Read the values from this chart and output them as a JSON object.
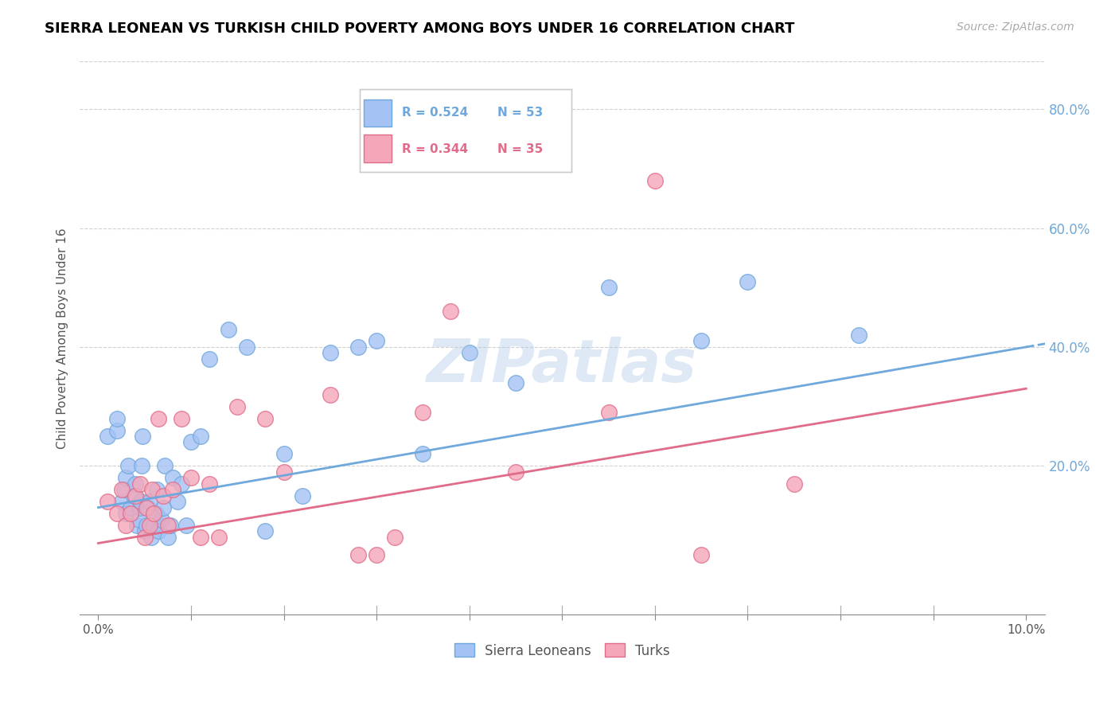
{
  "title": "SIERRA LEONEAN VS TURKISH CHILD POVERTY AMONG BOYS UNDER 16 CORRELATION CHART",
  "source": "Source: ZipAtlas.com",
  "ylabel": "Child Poverty Among Boys Under 16",
  "y_ticks": [
    0.0,
    20.0,
    40.0,
    60.0,
    80.0
  ],
  "y_tick_labels": [
    "",
    "20.0%",
    "40.0%",
    "60.0%",
    "80.0%"
  ],
  "x_range": [
    0.0,
    10.0
  ],
  "y_range": [
    -5.0,
    88.0
  ],
  "legend_R1": "R = 0.524",
  "legend_N1": "N = 53",
  "legend_R2": "R = 0.344",
  "legend_N2": "N = 35",
  "watermark": "ZIPatlas",
  "blue_color": "#6fa8dc",
  "pink_color": "#e06c8a",
  "blue_fill": "#a4c2f4",
  "pink_fill": "#f4a7b9",
  "sierra_x": [
    0.1,
    0.2,
    0.2,
    0.25,
    0.28,
    0.3,
    0.3,
    0.32,
    0.35,
    0.38,
    0.4,
    0.42,
    0.44,
    0.45,
    0.46,
    0.47,
    0.48,
    0.5,
    0.52,
    0.54,
    0.55,
    0.57,
    0.6,
    0.62,
    0.63,
    0.65,
    0.68,
    0.7,
    0.72,
    0.75,
    0.78,
    0.8,
    0.85,
    0.9,
    0.95,
    1.0,
    1.1,
    1.2,
    1.4,
    1.6,
    1.8,
    2.0,
    2.2,
    2.5,
    2.8,
    3.0,
    3.5,
    4.0,
    4.5,
    5.5,
    6.5,
    7.0,
    8.2
  ],
  "sierra_y": [
    25.0,
    26.0,
    28.0,
    14.0,
    16.0,
    12.0,
    18.0,
    20.0,
    13.0,
    15.0,
    17.0,
    10.0,
    11.0,
    13.0,
    14.0,
    20.0,
    25.0,
    9.0,
    10.0,
    13.0,
    14.0,
    8.0,
    10.0,
    12.0,
    16.0,
    9.0,
    11.0,
    13.0,
    20.0,
    8.0,
    10.0,
    18.0,
    14.0,
    17.0,
    10.0,
    24.0,
    25.0,
    38.0,
    43.0,
    40.0,
    9.0,
    22.0,
    15.0,
    39.0,
    40.0,
    41.0,
    22.0,
    39.0,
    34.0,
    50.0,
    41.0,
    51.0,
    42.0
  ],
  "turkish_x": [
    0.1,
    0.2,
    0.25,
    0.3,
    0.35,
    0.4,
    0.45,
    0.5,
    0.52,
    0.55,
    0.58,
    0.6,
    0.65,
    0.7,
    0.75,
    0.8,
    0.9,
    1.0,
    1.1,
    1.2,
    1.3,
    1.5,
    1.8,
    2.0,
    2.5,
    2.8,
    3.0,
    3.2,
    3.5,
    3.8,
    4.5,
    5.5,
    6.0,
    6.5,
    7.5
  ],
  "turkish_y": [
    14.0,
    12.0,
    16.0,
    10.0,
    12.0,
    15.0,
    17.0,
    8.0,
    13.0,
    10.0,
    16.0,
    12.0,
    28.0,
    15.0,
    10.0,
    16.0,
    28.0,
    18.0,
    8.0,
    17.0,
    8.0,
    30.0,
    28.0,
    19.0,
    32.0,
    5.0,
    5.0,
    8.0,
    29.0,
    46.0,
    19.0,
    29.0,
    68.0,
    5.0,
    17.0
  ],
  "blue_line_x0": 0.0,
  "blue_line_y0": 13.0,
  "blue_line_x1": 10.0,
  "blue_line_y1": 40.0,
  "pink_line_x0": 0.0,
  "pink_line_y0": 7.0,
  "pink_line_x1": 10.0,
  "pink_line_y1": 33.0
}
